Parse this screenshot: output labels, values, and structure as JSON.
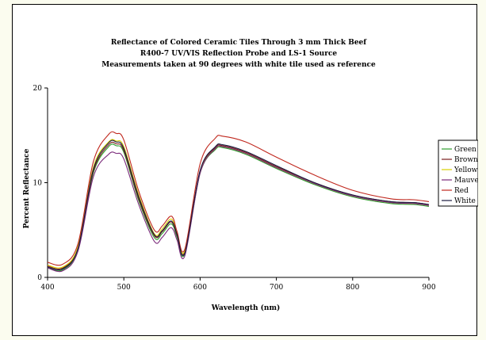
{
  "chart_data": {
    "type": "line",
    "title": [
      "Reflectance of Colored Ceramic Tiles Through 3 mm Thick Beef",
      "R400-7 UV/VIS Reflection Probe and LS-1 Source",
      "Measurements taken at 90 degrees with white tile used as reference"
    ],
    "xlabel": "Wavelength (nm)",
    "ylabel": "Percent Reflectance",
    "xlim": [
      400,
      900
    ],
    "ylim": [
      0,
      20
    ],
    "xticks": [
      400,
      500,
      600,
      700,
      800,
      900
    ],
    "yticks": [
      0,
      10,
      20
    ],
    "grid": false,
    "legend_position": "right",
    "x": [
      400,
      420,
      440,
      460,
      480,
      490,
      500,
      520,
      540,
      550,
      560,
      565,
      570,
      580,
      600,
      620,
      630,
      660,
      700,
      750,
      800,
      850,
      880,
      900
    ],
    "series": [
      {
        "name": "Green",
        "color": "#2e9e2e",
        "values": [
          1.0,
          0.8,
          3.0,
          11.0,
          13.8,
          13.9,
          13.2,
          8.0,
          4.2,
          4.6,
          5.6,
          5.4,
          4.2,
          2.5,
          11.0,
          13.5,
          13.7,
          13.0,
          11.5,
          9.8,
          8.5,
          7.8,
          7.7,
          7.5
        ]
      },
      {
        "name": "Brown",
        "color": "#7a1f1f",
        "values": [
          1.2,
          1.0,
          3.2,
          11.2,
          14.0,
          14.1,
          13.4,
          8.2,
          4.4,
          4.8,
          5.8,
          5.6,
          4.4,
          2.7,
          11.2,
          13.7,
          13.9,
          13.2,
          11.7,
          10.0,
          8.7,
          8.0,
          7.9,
          7.7
        ]
      },
      {
        "name": "Yellow",
        "color": "#d8d000",
        "values": [
          1.3,
          1.1,
          3.3,
          11.6,
          14.3,
          14.4,
          13.8,
          8.6,
          4.6,
          5.1,
          6.1,
          5.9,
          4.6,
          2.8,
          11.1,
          13.6,
          13.8,
          13.1,
          11.6,
          9.9,
          8.6,
          7.9,
          7.8,
          7.6
        ]
      },
      {
        "name": "Mauve",
        "color": "#7a2a7a",
        "values": [
          1.0,
          0.7,
          2.8,
          10.6,
          13.0,
          13.1,
          12.5,
          7.6,
          3.8,
          4.2,
          5.2,
          5.0,
          3.9,
          2.3,
          11.0,
          13.6,
          13.8,
          13.1,
          11.6,
          9.9,
          8.6,
          7.9,
          7.8,
          7.6
        ]
      },
      {
        "name": "Red",
        "color": "#c0281e",
        "values": [
          1.6,
          1.4,
          3.6,
          12.2,
          15.1,
          15.2,
          14.5,
          9.0,
          5.0,
          5.4,
          6.4,
          6.2,
          4.8,
          3.0,
          12.0,
          14.7,
          14.9,
          14.3,
          12.7,
          10.8,
          9.2,
          8.3,
          8.2,
          8.0
        ]
      },
      {
        "name": "White",
        "color": "#1a1a40",
        "values": [
          1.1,
          0.9,
          3.1,
          11.4,
          14.2,
          14.3,
          13.6,
          8.4,
          4.5,
          4.9,
          5.9,
          5.7,
          4.5,
          2.6,
          11.3,
          13.8,
          14.0,
          13.3,
          11.8,
          10.0,
          8.7,
          8.0,
          7.9,
          7.7
        ]
      }
    ]
  }
}
